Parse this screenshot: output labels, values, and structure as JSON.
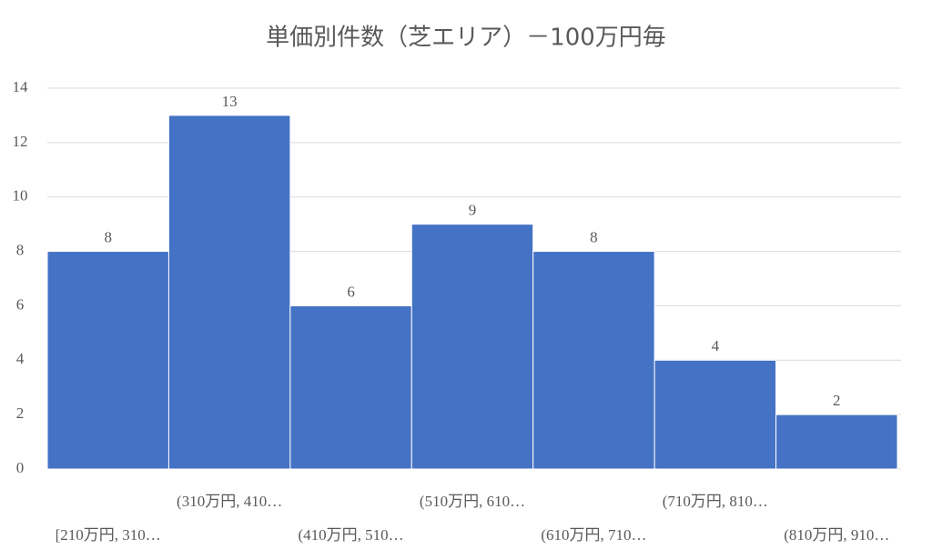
{
  "chart_data": {
    "type": "bar",
    "title": "単価別件数（芝エリア）－100万円毎",
    "categories": [
      "[210万円, 310…",
      "(310万円, 410…",
      "(410万円, 510…",
      "(510万円, 610…",
      "(610万円, 710…",
      "(710万円, 810…",
      "(810万円, 910…"
    ],
    "values": [
      8,
      13,
      6,
      9,
      8,
      4,
      2
    ],
    "color": "#4472c4",
    "ylim": [
      0,
      14
    ],
    "yticks": [
      0,
      2,
      4,
      6,
      8,
      10,
      12,
      14
    ],
    "grid": true
  }
}
